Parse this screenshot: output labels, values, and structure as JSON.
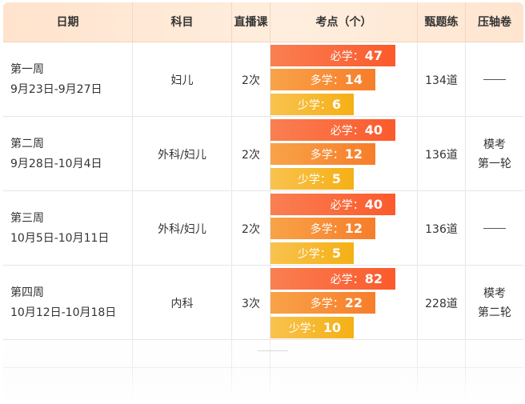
{
  "header": {
    "date": "日期",
    "subject": "科目",
    "live": "直播课",
    "points": "考点（个）",
    "exercises": "甄题练",
    "final": "压轴卷"
  },
  "labels": {
    "must": "必学：",
    "more": "多学：",
    "less": "少学："
  },
  "rows": [
    {
      "week": "第一周",
      "range": "9月23日-9月27日",
      "subject": "妇儿",
      "live": "2次",
      "must": "47",
      "more": "14",
      "less": "6",
      "exercises": "134道",
      "final": ""
    },
    {
      "week": "第二周",
      "range": "9月28日-10月4日",
      "subject": "外科/妇儿",
      "live": "2次",
      "must": "40",
      "more": "12",
      "less": "5",
      "exercises": "136道",
      "final_line1": "模考",
      "final_line2": "第一轮"
    },
    {
      "week": "第三周",
      "range": "10月5日-10月11日",
      "subject": "外科/妇儿",
      "live": "2次",
      "must": "40",
      "more": "12",
      "less": "5",
      "exercises": "136道",
      "final": ""
    },
    {
      "week": "第四周",
      "range": "10月12日-10月18日",
      "subject": "内科",
      "live": "3次",
      "must": "82",
      "more": "22",
      "less": "10",
      "exercises": "228道",
      "final_line1": "模考",
      "final_line2": "第二轮"
    }
  ],
  "colors": {
    "header_bg": "#ffe8d6",
    "must_bar": "#fb5a2c",
    "more_bar": "#f77d2a",
    "less_bar": "#f5b014",
    "grid": "#e6e6e6"
  }
}
